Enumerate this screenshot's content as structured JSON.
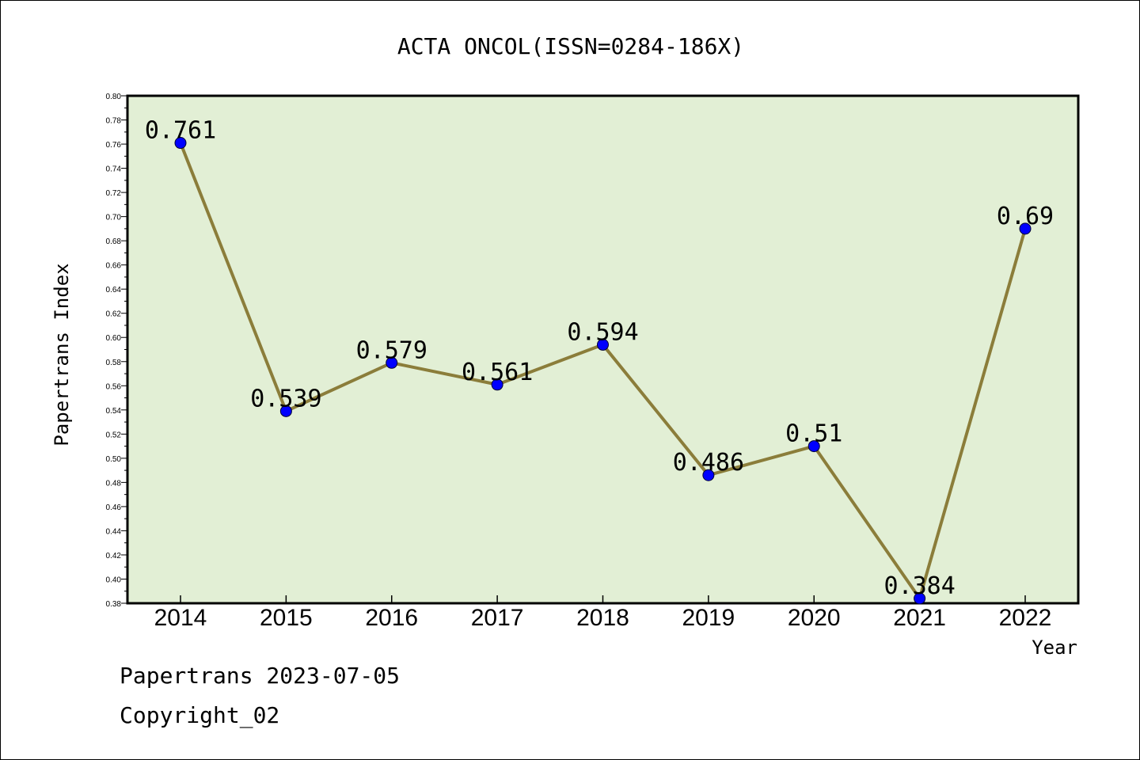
{
  "chart_data": {
    "type": "line",
    "title": "ACTA ONCOL(ISSN=0284-186X)",
    "xlabel": "Year",
    "ylabel": "Papertrans Index",
    "categories": [
      "2014",
      "2015",
      "2016",
      "2017",
      "2018",
      "2019",
      "2020",
      "2021",
      "2022"
    ],
    "values": [
      0.761,
      0.539,
      0.579,
      0.561,
      0.594,
      0.486,
      0.51,
      0.384,
      0.69
    ],
    "data_labels": [
      "0.761",
      "0.539",
      "0.579",
      "0.561",
      "0.594",
      "0.486",
      "0.51",
      "0.384",
      "0.69"
    ],
    "ylim": [
      0.38,
      0.8
    ],
    "y_ticks": [
      "0.38",
      "0.40",
      "0.42",
      "0.44",
      "0.46",
      "0.48",
      "0.50",
      "0.52",
      "0.54",
      "0.56",
      "0.58",
      "0.60",
      "0.62",
      "0.64",
      "0.66",
      "0.68",
      "0.70",
      "0.72",
      "0.74",
      "0.76",
      "0.78",
      "0.80"
    ],
    "grid": false,
    "colors": {
      "plot_background": "#e2efd5",
      "line": "#8b7d3a",
      "marker": "#0000ff"
    }
  },
  "footer": {
    "date_text": "Papertrans 2023-07-05",
    "copyright_text": "Copyright_02"
  }
}
